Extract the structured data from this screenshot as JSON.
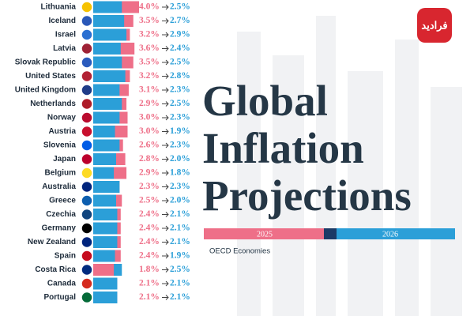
{
  "chart_data": {
    "type": "bar",
    "title": "Global Inflation Projections",
    "subtitle": "OECD Economies",
    "watermark": "فرادید",
    "categories": [
      "Lithuania",
      "Iceland",
      "Israel",
      "Latvia",
      "Slovak Republic",
      "United States",
      "United Kingdom",
      "Netherlands",
      "Norway",
      "Austria",
      "Slovenia",
      "Japan",
      "Belgium",
      "Australia",
      "Greece",
      "Czechia",
      "Germany",
      "New Zealand",
      "Spain",
      "Costa Rica",
      "Canada",
      "Portugal"
    ],
    "series": [
      {
        "name": "2025",
        "color": "#ee6f88",
        "values": [
          4.0,
          3.5,
          3.2,
          3.6,
          3.5,
          3.2,
          3.1,
          2.9,
          3.0,
          3.0,
          2.6,
          2.8,
          2.9,
          2.3,
          2.5,
          2.4,
          2.4,
          2.4,
          2.4,
          1.8,
          2.1,
          2.1
        ],
        "value_labels": [
          "4.0%",
          "3.5%",
          "3.2%",
          "3.6%",
          "3.5%",
          "3.2%",
          "3.1%",
          "2.9%",
          "3.0%",
          "3.0%",
          "2.6%",
          "2.8%",
          "2.9%",
          "2.3%",
          "2.5%",
          "2.4%",
          "2.4%",
          "2.4%",
          "2.4%",
          "1.8%",
          "2.1%",
          "2.1%"
        ]
      },
      {
        "name": "2026",
        "color": "#2b9fd8",
        "values": [
          2.5,
          2.7,
          2.9,
          2.4,
          2.5,
          2.8,
          2.3,
          2.5,
          2.3,
          1.9,
          2.3,
          2.0,
          1.8,
          2.3,
          2.0,
          2.1,
          2.1,
          2.1,
          1.9,
          2.5,
          2.1,
          2.1
        ],
        "value_labels": [
          "2.5%",
          "2.7%",
          "2.9%",
          "2.4%",
          "2.5%",
          "2.8%",
          "2.3%",
          "2.5%",
          "2.3%",
          "1.9%",
          "2.3%",
          "2.0%",
          "1.8%",
          "2.3%",
          "2.0%",
          "2.1%",
          "2.1%",
          "2.1%",
          "1.9%",
          "2.5%",
          "2.1%",
          "2.1%"
        ]
      }
    ]
  }
}
